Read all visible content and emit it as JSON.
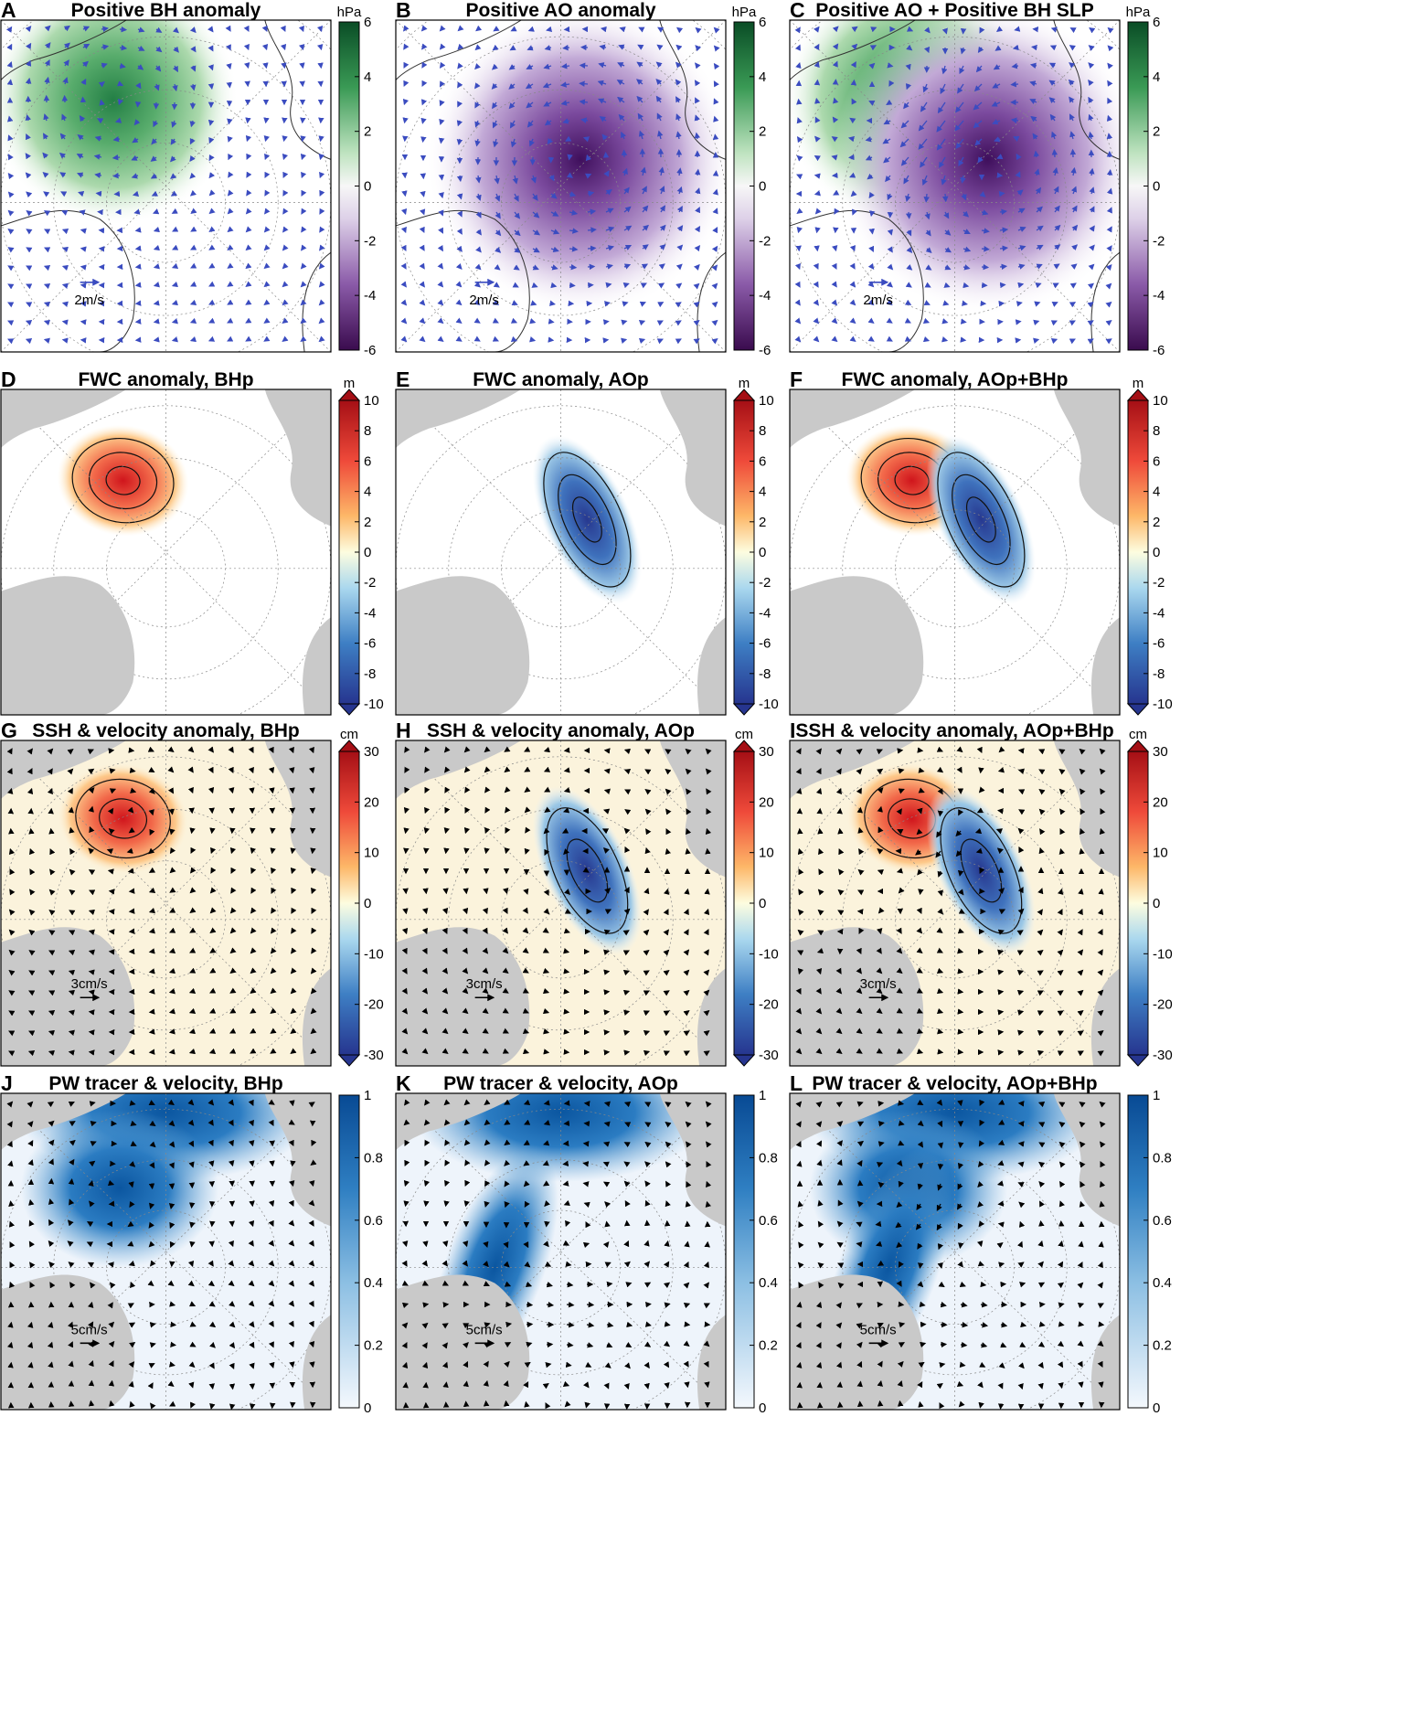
{
  "figure": {
    "panels": [
      {
        "letter": "A",
        "title": "Positive BH anomaly",
        "kind": "slp",
        "anomaly": "bh",
        "scale_label": "2m/s"
      },
      {
        "letter": "B",
        "title": "Positive AO anomaly",
        "kind": "slp",
        "anomaly": "ao",
        "scale_label": "2m/s"
      },
      {
        "letter": "C",
        "title": "Positive AO + Positive BH SLP",
        "kind": "slp",
        "anomaly": "both",
        "scale_label": "2m/s"
      },
      {
        "letter": "D",
        "title": "FWC anomaly, BHp",
        "kind": "fwc",
        "anomaly": "bh",
        "scale_label": ""
      },
      {
        "letter": "E",
        "title": "FWC anomaly, AOp",
        "kind": "fwc",
        "anomaly": "ao",
        "scale_label": ""
      },
      {
        "letter": "F",
        "title": "FWC anomaly, AOp+BHp",
        "kind": "fwc",
        "anomaly": "both",
        "scale_label": ""
      },
      {
        "letter": "G",
        "title": "SSH & velocity anomaly, BHp",
        "kind": "ssh",
        "anomaly": "bh",
        "scale_label": "3cm/s"
      },
      {
        "letter": "H",
        "title": "SSH & velocity anomaly, AOp",
        "kind": "ssh",
        "anomaly": "ao",
        "scale_label": "3cm/s"
      },
      {
        "letter": "I",
        "title": "SSH & velocity anomaly, AOp+BHp",
        "kind": "ssh",
        "anomaly": "both",
        "scale_label": "3cm/s"
      },
      {
        "letter": "J",
        "title": "PW tracer & velocity, BHp",
        "kind": "pw",
        "anomaly": "bh",
        "scale_label": "5cm/s"
      },
      {
        "letter": "K",
        "title": "PW tracer & velocity, AOp",
        "kind": "pw",
        "anomaly": "ao",
        "scale_label": "5cm/s"
      },
      {
        "letter": "L",
        "title": "PW tracer & velocity, AOp+BHp",
        "kind": "pw",
        "anomaly": "both",
        "scale_label": "5cm/s"
      }
    ],
    "colorbars": {
      "slp": {
        "unit": "hPa",
        "ticks": [
          "6",
          "4",
          "2",
          "0",
          "-2",
          "-4",
          "-6"
        ],
        "range": [
          -6,
          6
        ],
        "palette": "green-purple"
      },
      "fwc": {
        "unit": "m",
        "ticks": [
          "10",
          "8",
          "6",
          "4",
          "2",
          "0",
          "-2",
          "-4",
          "-6",
          "-8",
          "-10"
        ],
        "range": [
          -10,
          10
        ],
        "palette": "red-blue"
      },
      "ssh": {
        "unit": "cm",
        "ticks": [
          "30",
          "20",
          "10",
          "0",
          "-10",
          "-20",
          "-30"
        ],
        "range": [
          -30,
          30
        ],
        "palette": "red-blue"
      },
      "pw": {
        "unit": "",
        "ticks": [
          "1",
          "0.8",
          "0.6",
          "0.4",
          "0.2",
          "0"
        ],
        "range": [
          0,
          1
        ],
        "palette": "white-blue"
      }
    },
    "colors": {
      "land_gray": "#c9c9c9",
      "slp_vector": "#3b4cc0",
      "ocean_vector": "#000000",
      "positive_green": "#2e8b4a",
      "negative_purple": "#4a1d6e",
      "positive_red": "#d7191c",
      "negative_blue": "#2b4ba8",
      "pw_blue": "#0b5aa8"
    }
  }
}
